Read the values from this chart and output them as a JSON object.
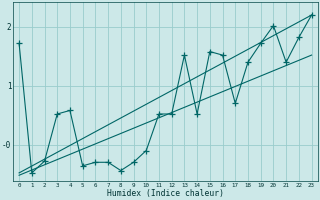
{
  "xlabel": "Humidex (Indice chaleur)",
  "background_color": "#cce8e8",
  "grid_color": "#99cccc",
  "line_color": "#006666",
  "xlim": [
    -0.5,
    23.5
  ],
  "ylim": [
    -0.62,
    2.42
  ],
  "xticks": [
    0,
    1,
    2,
    3,
    4,
    5,
    6,
    7,
    8,
    9,
    10,
    11,
    12,
    13,
    14,
    15,
    16,
    17,
    18,
    19,
    20,
    21,
    22,
    23
  ],
  "yticks": [
    0.0,
    1.0,
    2.0
  ],
  "ytick_labels": [
    "-0",
    "1",
    "2"
  ],
  "series1_x": [
    0,
    1,
    2,
    3,
    4,
    5,
    6,
    7,
    8,
    9,
    10,
    11,
    12,
    13,
    14,
    15,
    16,
    17,
    18,
    19,
    20,
    21,
    22,
    23
  ],
  "series1_y": [
    1.72,
    -0.48,
    -0.28,
    0.52,
    0.58,
    -0.36,
    -0.3,
    -0.3,
    -0.44,
    -0.3,
    -0.1,
    0.52,
    0.52,
    1.52,
    0.52,
    1.58,
    1.52,
    0.7,
    1.4,
    1.72,
    2.02,
    1.4,
    1.82,
    2.2
  ],
  "trend1_x": [
    0,
    23
  ],
  "trend1_y": [
    -0.48,
    2.2
  ],
  "trend2_x": [
    0,
    23
  ],
  "trend2_y": [
    -0.52,
    1.52
  ]
}
